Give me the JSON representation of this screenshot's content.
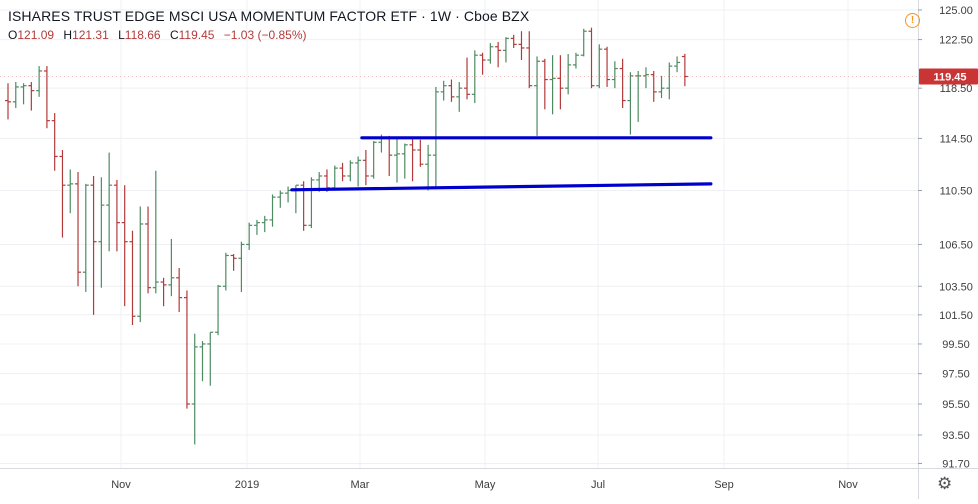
{
  "header": {
    "title": "ISHARES TRUST EDGE MSCI USA MOMENTUM FACTOR ETF · 1W · Cboe BZX",
    "ohlc": {
      "open_label": "O",
      "open": "121.09",
      "high_label": "H",
      "high": "121.31",
      "low_label": "L",
      "low": "118.66",
      "close_label": "C",
      "close": "119.45",
      "change": "−1.03 (−0.85%)"
    }
  },
  "icons": {
    "info": "info-icon",
    "settings": "gear-icon"
  },
  "colors": {
    "up": "#4e8b62",
    "down": "#b33a3a",
    "support_line": "#0000cc",
    "price_badge": "#c93535",
    "grid": "#eef0f3",
    "axis_text": "#3d3d3d"
  },
  "chart_data": {
    "type": "ohlc-bar",
    "title": "ISHARES TRUST EDGE MSCI USA MOMENTUM FACTOR ETF",
    "interval": "1W",
    "exchange": "Cboe BZX",
    "y_axis": {
      "ticks": [
        "125.00",
        "122.50",
        "118.50",
        "114.50",
        "110.50",
        "106.50",
        "103.50",
        "101.50",
        "99.50",
        "97.50",
        "95.50",
        "93.50",
        "91.70"
      ],
      "range": [
        91.7,
        125.0
      ],
      "scale": "log"
    },
    "x_axis": {
      "ticks": [
        "Nov",
        "2019",
        "Mar",
        "May",
        "Jul",
        "Sep",
        "Nov"
      ]
    },
    "last_price": "119.45",
    "bars": [
      [
        117.5,
        118.9,
        116.0,
        117.4
      ],
      [
        117.4,
        119.0,
        116.9,
        118.6
      ],
      [
        118.6,
        118.9,
        117.2,
        118.7
      ],
      [
        118.7,
        119.0,
        116.7,
        118.3
      ],
      [
        118.3,
        120.3,
        117.8,
        119.9
      ],
      [
        119.9,
        120.3,
        115.3,
        115.9
      ],
      [
        115.9,
        116.5,
        112.0,
        113.1
      ],
      [
        113.1,
        113.6,
        107.0,
        110.9
      ],
      [
        110.9,
        112.1,
        108.8,
        111.0
      ],
      [
        111.0,
        111.9,
        103.5,
        104.5
      ],
      [
        104.5,
        111.0,
        103.1,
        110.9
      ],
      [
        110.9,
        111.6,
        101.5,
        106.7
      ],
      [
        106.7,
        111.5,
        103.4,
        109.4
      ],
      [
        109.4,
        113.4,
        106.0,
        110.9
      ],
      [
        110.9,
        111.3,
        106.0,
        108.1
      ],
      [
        108.1,
        110.9,
        102.1,
        106.7
      ],
      [
        106.7,
        107.5,
        100.8,
        101.4
      ],
      [
        101.4,
        109.3,
        101.0,
        108.0
      ],
      [
        108.0,
        109.3,
        103.0,
        103.4
      ],
      [
        103.4,
        112.0,
        103.0,
        103.8
      ],
      [
        103.8,
        104.1,
        102.1,
        103.6
      ],
      [
        103.6,
        106.9,
        102.8,
        104.1
      ],
      [
        104.1,
        104.8,
        101.7,
        102.7
      ],
      [
        102.7,
        103.2,
        95.2,
        95.5
      ],
      [
        95.5,
        100.2,
        92.9,
        99.3
      ],
      [
        99.3,
        99.7,
        97.0,
        99.5
      ],
      [
        99.5,
        100.3,
        96.7,
        100.3
      ],
      [
        100.3,
        103.6,
        100.1,
        103.5
      ],
      [
        103.5,
        105.9,
        103.2,
        105.7
      ],
      [
        105.7,
        105.8,
        104.6,
        105.5
      ],
      [
        105.5,
        106.7,
        103.1,
        106.5
      ],
      [
        106.5,
        108.1,
        106.1,
        107.9
      ],
      [
        107.9,
        108.3,
        107.2,
        108.1
      ],
      [
        108.1,
        108.6,
        107.4,
        108.3
      ],
      [
        108.3,
        110.2,
        107.8,
        110.0
      ],
      [
        110.0,
        110.5,
        109.2,
        110.3
      ],
      [
        110.3,
        110.8,
        109.6,
        110.5
      ],
      [
        110.5,
        110.9,
        108.8,
        110.9
      ],
      [
        110.9,
        111.2,
        107.5,
        107.9
      ],
      [
        107.9,
        111.5,
        107.7,
        111.3
      ],
      [
        111.3,
        111.9,
        110.4,
        111.6
      ],
      [
        111.6,
        112.1,
        110.4,
        110.7
      ],
      [
        110.7,
        112.4,
        110.6,
        112.2
      ],
      [
        112.2,
        112.6,
        111.2,
        111.6
      ],
      [
        111.6,
        112.8,
        111.2,
        112.6
      ],
      [
        112.6,
        113.1,
        110.8,
        112.8
      ],
      [
        112.8,
        113.6,
        110.9,
        111.6
      ],
      [
        111.6,
        114.3,
        111.4,
        114.2
      ],
      [
        114.2,
        114.8,
        113.4,
        114.5
      ],
      [
        114.5,
        114.7,
        111.6,
        113.2
      ],
      [
        113.2,
        114.6,
        111.1,
        113.3
      ],
      [
        113.3,
        114.1,
        111.4,
        114.0
      ],
      [
        114.0,
        114.5,
        111.2,
        113.6
      ],
      [
        113.6,
        114.4,
        112.3,
        112.5
      ],
      [
        112.5,
        114.0,
        110.5,
        113.2
      ],
      [
        113.2,
        118.6,
        110.6,
        118.2
      ],
      [
        118.2,
        119.1,
        117.5,
        118.7
      ],
      [
        118.7,
        119.2,
        117.4,
        117.8
      ],
      [
        117.8,
        119.0,
        116.6,
        118.5
      ],
      [
        118.5,
        121.0,
        117.6,
        118.0
      ],
      [
        118.0,
        121.6,
        117.3,
        121.2
      ],
      [
        121.2,
        121.4,
        119.6,
        120.8
      ],
      [
        120.8,
        122.2,
        120.5,
        121.9
      ],
      [
        121.9,
        122.3,
        120.2,
        121.6
      ],
      [
        121.6,
        122.7,
        120.6,
        122.6
      ],
      [
        122.6,
        122.9,
        121.8,
        122.1
      ],
      [
        122.1,
        123.2,
        120.8,
        121.8
      ],
      [
        121.8,
        123.2,
        118.5,
        118.7
      ],
      [
        118.7,
        121.1,
        114.7,
        120.7
      ],
      [
        120.7,
        120.9,
        116.8,
        119.2
      ],
      [
        119.2,
        121.2,
        116.4,
        119.3
      ],
      [
        119.3,
        121.2,
        116.8,
        118.5
      ],
      [
        118.5,
        121.3,
        118.0,
        120.4
      ],
      [
        120.4,
        121.4,
        120.1,
        121.2
      ],
      [
        121.2,
        123.4,
        121.1,
        123.2
      ],
      [
        123.2,
        123.5,
        118.5,
        118.7
      ],
      [
        118.7,
        122.1,
        118.5,
        121.7
      ],
      [
        121.7,
        121.9,
        118.6,
        119.2
      ],
      [
        119.2,
        120.7,
        118.5,
        120.1
      ],
      [
        120.1,
        120.9,
        116.9,
        117.5
      ],
      [
        117.5,
        119.8,
        114.8,
        119.5
      ],
      [
        119.5,
        119.9,
        115.8,
        119.5
      ],
      [
        119.5,
        120.2,
        118.5,
        119.6
      ],
      [
        119.6,
        119.9,
        117.4,
        118.2
      ],
      [
        118.2,
        119.5,
        117.7,
        118.5
      ],
      [
        118.5,
        120.6,
        117.6,
        120.3
      ],
      [
        120.3,
        121.1,
        119.8,
        120.6
      ],
      [
        121.09,
        121.31,
        118.66,
        119.45
      ]
    ],
    "trend_lines": [
      {
        "from": {
          "bar": 46,
          "price": 114.55
        },
        "to": {
          "bar": 87,
          "price": 114.55
        }
      },
      {
        "from": {
          "bar": 37,
          "price": 110.55
        },
        "to": {
          "bar": 87,
          "price": 111.0
        }
      }
    ]
  }
}
